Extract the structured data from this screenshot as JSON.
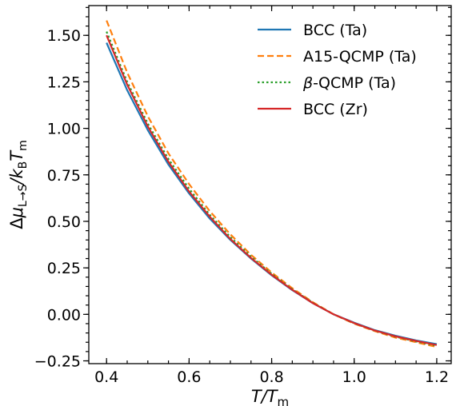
{
  "chart_data": {
    "type": "line",
    "xlim": [
      0.357,
      1.235
    ],
    "ylim": [
      -0.265,
      1.66
    ],
    "xticks": [
      0.4,
      0.6,
      0.8,
      1.0,
      1.2
    ],
    "xtick_labels": [
      "0.4",
      "0.6",
      "0.8",
      "1.0",
      "1.2"
    ],
    "yticks": [
      -0.25,
      0.0,
      0.25,
      0.5,
      0.75,
      1.0,
      1.25,
      1.5
    ],
    "ytick_labels": [
      "−0.25",
      "0.00",
      "0.25",
      "0.50",
      "0.75",
      "1.00",
      "1.25",
      "1.50"
    ],
    "xlabel": {
      "pre": "T",
      "mid": "/T",
      "sub": "m"
    },
    "ylabel": {
      "delta": "Δ",
      "mu": "μ",
      "sub1": "L→S",
      "slash": "/k",
      "sub2": "B",
      "t": "T",
      "sub3": "m"
    },
    "grid": false,
    "legend_position": "upper-right",
    "series": [
      {
        "name": "BCC (Ta)",
        "color": "#1f77b4",
        "dash": "solid",
        "x": [
          0.4,
          0.45,
          0.5,
          0.55,
          0.6,
          0.65,
          0.7,
          0.75,
          0.8,
          0.85,
          0.9,
          0.95,
          1.0,
          1.05,
          1.1,
          1.15,
          1.2
        ],
        "y": [
          1.46,
          1.205,
          0.99,
          0.805,
          0.65,
          0.515,
          0.4,
          0.3,
          0.21,
          0.13,
          0.06,
          0.0,
          -0.045,
          -0.085,
          -0.115,
          -0.14,
          -0.16
        ]
      },
      {
        "name": "A15-QCMP (Ta)",
        "color": "#ff7f0e",
        "dash": "dashed",
        "x": [
          0.4,
          0.45,
          0.5,
          0.55,
          0.6,
          0.65,
          0.7,
          0.75,
          0.8,
          0.85,
          0.9,
          0.95,
          1.0,
          1.05,
          1.1,
          1.15,
          1.2
        ],
        "y": [
          1.58,
          1.3,
          1.065,
          0.865,
          0.7,
          0.555,
          0.43,
          0.32,
          0.225,
          0.14,
          0.065,
          0.0,
          -0.05,
          -0.09,
          -0.125,
          -0.15,
          -0.175
        ]
      },
      {
        "name": "β-QCMP (Ta)",
        "color": "#2ca02c",
        "dash": "dotted",
        "x": [
          0.4,
          0.45,
          0.5,
          0.55,
          0.6,
          0.65,
          0.7,
          0.75,
          0.8,
          0.85,
          0.9,
          0.95,
          1.0,
          1.05,
          1.1,
          1.15,
          1.2
        ],
        "y": [
          1.52,
          1.25,
          1.025,
          0.835,
          0.675,
          0.535,
          0.415,
          0.31,
          0.218,
          0.135,
          0.062,
          0.0,
          -0.048,
          -0.088,
          -0.12,
          -0.146,
          -0.168
        ]
      },
      {
        "name": "BCC (Zr)",
        "color": "#d62728",
        "dash": "solid",
        "x": [
          0.4,
          0.45,
          0.5,
          0.55,
          0.6,
          0.65,
          0.7,
          0.75,
          0.8,
          0.85,
          0.9,
          0.95,
          1.0,
          1.05,
          1.1,
          1.15,
          1.2
        ],
        "y": [
          1.5,
          1.235,
          1.01,
          0.82,
          0.66,
          0.525,
          0.405,
          0.303,
          0.213,
          0.132,
          0.06,
          0.0,
          -0.047,
          -0.087,
          -0.118,
          -0.143,
          -0.165
        ]
      }
    ]
  }
}
